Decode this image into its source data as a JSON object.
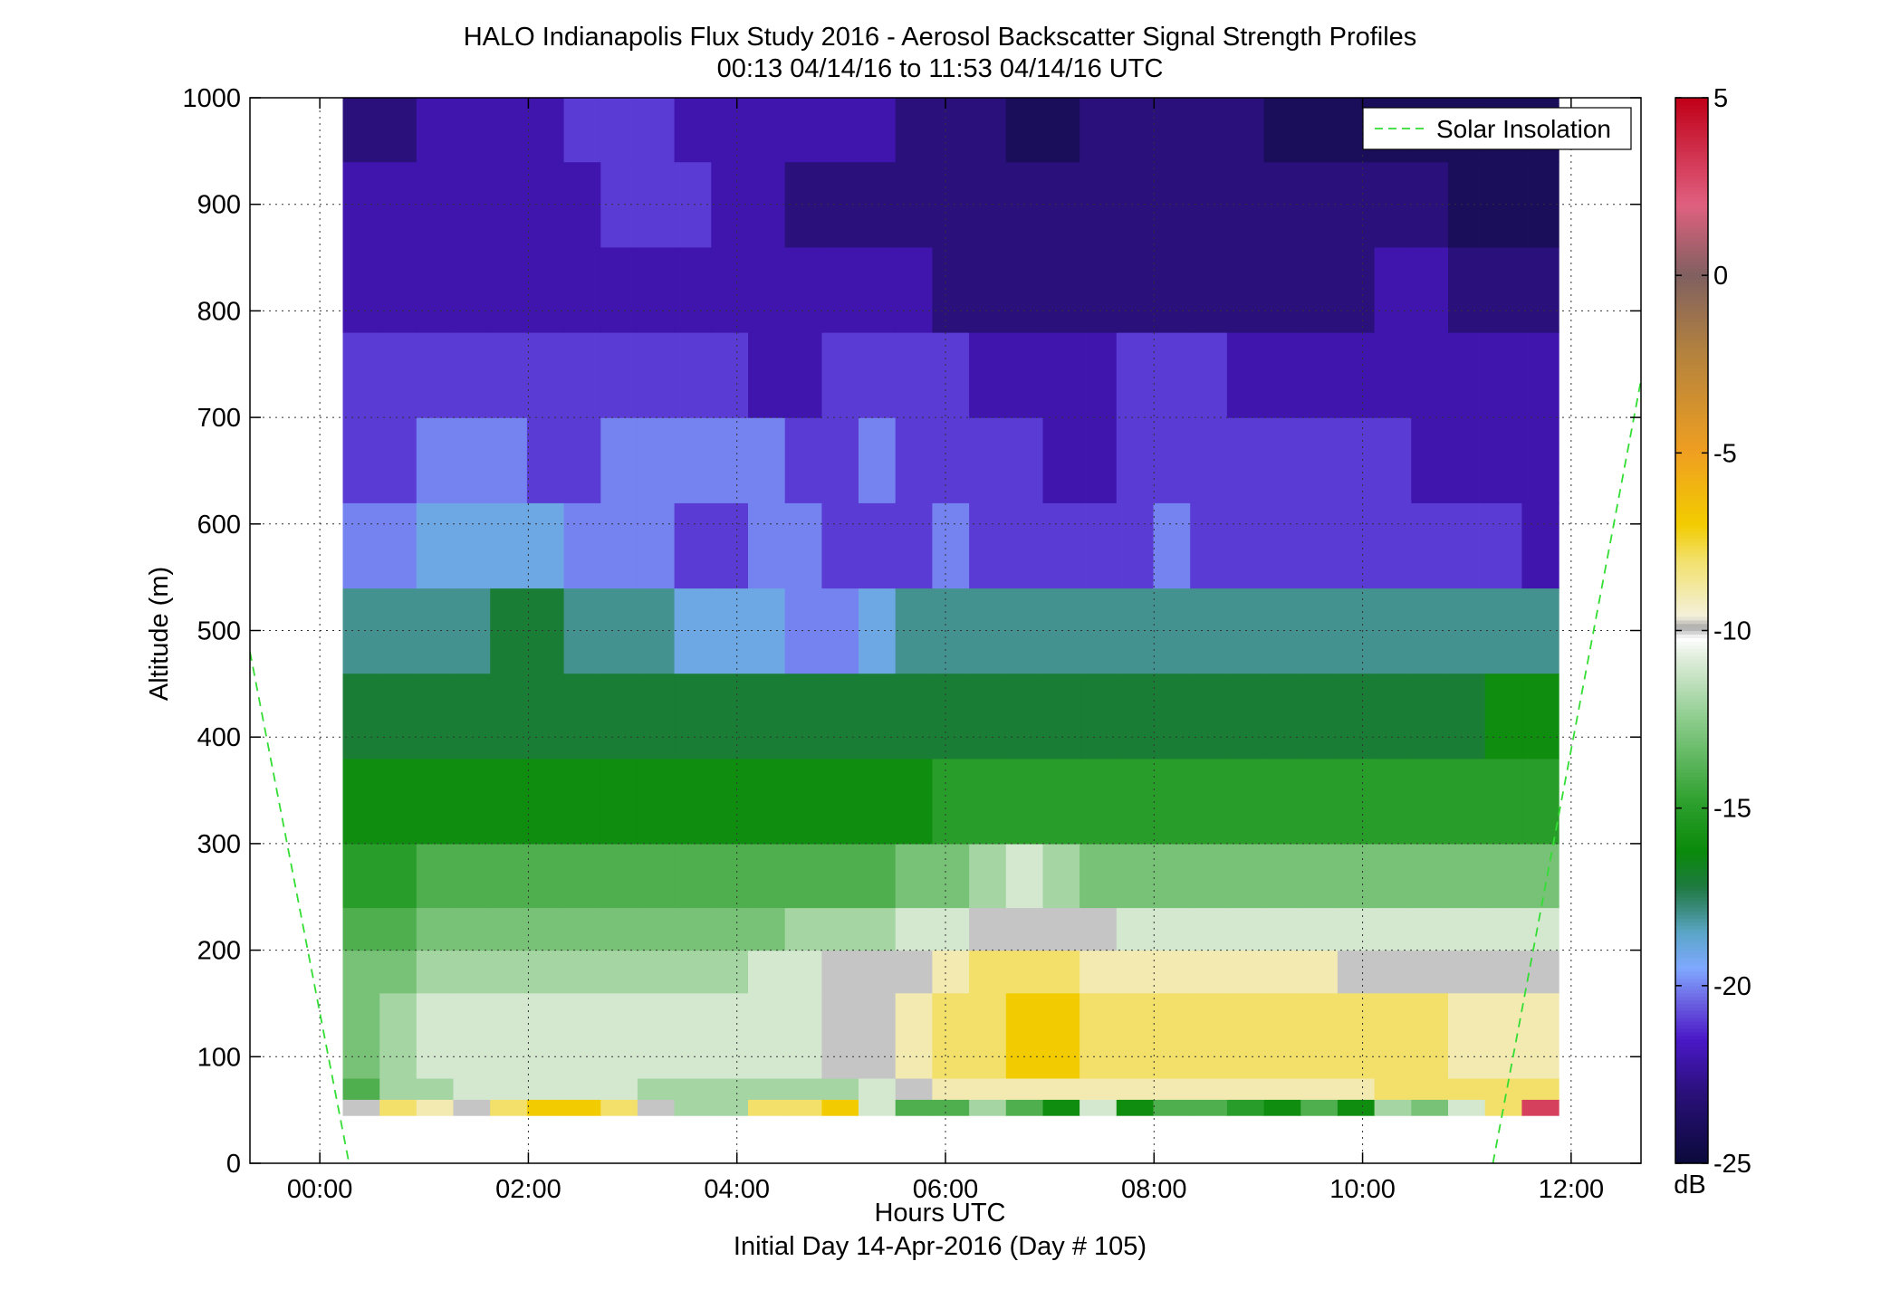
{
  "chart_data": {
    "type": "heatmap",
    "title": "HALO Indianapolis Flux Study 2016 - Aerosol Backscatter Signal Strength Profiles",
    "subtitle": "00:13 04/14/16 to 11:53 04/14/16  UTC",
    "xlabel": "Hours UTC",
    "xlabel2": "Initial Day 14-Apr-2016 (Day # 105)",
    "ylabel": "Altitude (m)",
    "xlim": [
      -0.67,
      12.67
    ],
    "ylim": [
      0,
      1000
    ],
    "x_ticks": [
      0,
      2,
      4,
      6,
      8,
      10,
      12
    ],
    "x_tick_labels": [
      "00:00",
      "02:00",
      "04:00",
      "06:00",
      "08:00",
      "10:00",
      "12:00"
    ],
    "y_ticks": [
      0,
      100,
      200,
      300,
      400,
      500,
      600,
      700,
      800,
      900,
      1000
    ],
    "y_tick_labels": [
      "0",
      "100",
      "200",
      "300",
      "400",
      "500",
      "600",
      "700",
      "800",
      "900",
      "1000"
    ],
    "grid": true,
    "x_range_hours": [
      0.22,
      11.88
    ],
    "altitude_range_m": [
      45,
      1000
    ],
    "colorbar": {
      "label": "dB",
      "range": [
        -25,
        5
      ],
      "ticks": [
        5,
        0,
        -5,
        -10,
        -15,
        -20,
        -25
      ],
      "tick_labels": [
        "5",
        "0",
        "-5",
        "-10",
        "-15",
        "-20",
        "-25"
      ]
    },
    "legend": {
      "position": "top-right",
      "entries": [
        "Solar Insolation"
      ]
    },
    "series": [
      {
        "name": "Solar Insolation",
        "type": "line",
        "style": "dashed",
        "color": "#33dd33",
        "segments": [
          {
            "x": [
              -0.67,
              0.28
            ],
            "y": [
              480,
              0
            ]
          },
          {
            "x": [
              11.25,
              12.67
            ],
            "y": [
              0,
              735
            ]
          }
        ]
      }
    ],
    "profile_bands": [
      {
        "alt_min": 45,
        "alt_max": 60,
        "values": [
          -10,
          -8,
          -9,
          -10,
          -8,
          -7,
          -7,
          -8,
          -10,
          -12,
          -12,
          -8,
          -8,
          -7,
          -11,
          -14,
          -14,
          -12,
          -14,
          -16,
          -11,
          -16,
          -14,
          -14,
          -15,
          -16,
          -14,
          -16,
          -12,
          -13,
          -11,
          -8,
          3
        ]
      },
      {
        "alt_min": 60,
        "alt_max": 80,
        "values": [
          -14,
          -12,
          -12,
          -11,
          -11,
          -11,
          -11,
          -11,
          -12,
          -12,
          -12,
          -12,
          -12,
          -12,
          -11,
          -10,
          -9,
          -9,
          -9,
          -9,
          -9,
          -9,
          -9,
          -9,
          -9,
          -9,
          -9,
          -9,
          -8,
          -8,
          -8,
          -8,
          -8
        ]
      },
      {
        "alt_min": 80,
        "alt_max": 160,
        "values": [
          -13,
          -12,
          -11,
          -11,
          -11,
          -11,
          -11,
          -11,
          -11,
          -11,
          -11,
          -11,
          -11,
          -10,
          -10,
          -9,
          -8,
          -8,
          -7,
          -7,
          -8,
          -8,
          -8,
          -8,
          -8,
          -8,
          -8,
          -8,
          -8,
          -8,
          -9,
          -9,
          -9
        ]
      },
      {
        "alt_min": 160,
        "alt_max": 200,
        "values": [
          -13,
          -13,
          -12,
          -12,
          -12,
          -12,
          -12,
          -12,
          -12,
          -12,
          -12,
          -11,
          -11,
          -10,
          -10,
          -10,
          -9,
          -8,
          -8,
          -8,
          -9,
          -9,
          -9,
          -9,
          -9,
          -9,
          -9,
          -10,
          -10,
          -10,
          -10,
          -10,
          -10
        ]
      },
      {
        "alt_min": 200,
        "alt_max": 240,
        "values": [
          -14,
          -14,
          -13,
          -13,
          -13,
          -13,
          -13,
          -13,
          -13,
          -13,
          -13,
          -13,
          -12,
          -12,
          -12,
          -11,
          -11,
          -10,
          -10,
          -10,
          -10,
          -11,
          -11,
          -11,
          -11,
          -11,
          -11,
          -11,
          -11,
          -11,
          -11,
          -11,
          -11
        ]
      },
      {
        "alt_min": 240,
        "alt_max": 300,
        "values": [
          -15,
          -15,
          -14,
          -14,
          -14,
          -14,
          -14,
          -14,
          -14,
          -14,
          -14,
          -14,
          -14,
          -14,
          -14,
          -13,
          -13,
          -12,
          -11,
          -12,
          -13,
          -13,
          -13,
          -13,
          -13,
          -13,
          -13,
          -13,
          -13,
          -13,
          -13,
          -13,
          -13
        ]
      },
      {
        "alt_min": 300,
        "alt_max": 380,
        "values": [
          -16,
          -16,
          -16,
          -16,
          -16,
          -16,
          -16,
          -16,
          -16,
          -16,
          -16,
          -16,
          -16,
          -16,
          -16,
          -16,
          -15,
          -15,
          -15,
          -15,
          -15,
          -15,
          -15,
          -15,
          -15,
          -15,
          -15,
          -15,
          -15,
          -15,
          -15,
          -15,
          -15
        ]
      },
      {
        "alt_min": 380,
        "alt_max": 460,
        "values": [
          -17,
          -17,
          -17,
          -17,
          -17,
          -17,
          -17,
          -17,
          -17,
          -17,
          -17,
          -17,
          -17,
          -17,
          -17,
          -17,
          -17,
          -17,
          -17,
          -17,
          -17,
          -17,
          -17,
          -17,
          -17,
          -17,
          -17,
          -17,
          -17,
          -17,
          -17,
          -16,
          -16
        ]
      },
      {
        "alt_min": 460,
        "alt_max": 540,
        "values": [
          -18,
          -18,
          -18,
          -18,
          -17,
          -17,
          -18,
          -18,
          -18,
          -19,
          -19,
          -19,
          -20,
          -20,
          -19,
          -18,
          -18,
          -18,
          -18,
          -18,
          -18,
          -18,
          -18,
          -18,
          -18,
          -18,
          -18,
          -18,
          -18,
          -18,
          -18,
          -18,
          -18
        ]
      },
      {
        "alt_min": 540,
        "alt_max": 620,
        "values": [
          -20,
          -20,
          -19,
          -19,
          -19,
          -19,
          -20,
          -20,
          -20,
          -21,
          -21,
          -20,
          -20,
          -21,
          -21,
          -21,
          -20,
          -21,
          -21,
          -21,
          -21,
          -21,
          -20,
          -21,
          -21,
          -21,
          -21,
          -21,
          -21,
          -21,
          -21,
          -21,
          -22
        ]
      },
      {
        "alt_min": 620,
        "alt_max": 700,
        "values": [
          -21,
          -21,
          -20,
          -20,
          -20,
          -21,
          -21,
          -20,
          -20,
          -20,
          -20,
          -20,
          -21,
          -21,
          -20,
          -21,
          -21,
          -21,
          -21,
          -22,
          -22,
          -21,
          -21,
          -21,
          -21,
          -21,
          -21,
          -21,
          -21,
          -22,
          -22,
          -22,
          -22
        ]
      },
      {
        "alt_min": 700,
        "alt_max": 780,
        "values": [
          -21,
          -21,
          -21,
          -21,
          -21,
          -21,
          -21,
          -21,
          -21,
          -21,
          -21,
          -22,
          -22,
          -21,
          -21,
          -21,
          -21,
          -22,
          -22,
          -22,
          -22,
          -21,
          -21,
          -21,
          -22,
          -22,
          -22,
          -22,
          -22,
          -22,
          -22,
          -22,
          -22
        ]
      },
      {
        "alt_min": 780,
        "alt_max": 860,
        "values": [
          -22,
          -22,
          -22,
          -22,
          -22,
          -22,
          -22,
          -22,
          -22,
          -22,
          -22,
          -22,
          -22,
          -22,
          -22,
          -22,
          -23,
          -23,
          -23,
          -23,
          -23,
          -23,
          -23,
          -23,
          -23,
          -23,
          -23,
          -23,
          -22,
          -22,
          -23,
          -23,
          -23
        ]
      },
      {
        "alt_min": 860,
        "alt_max": 940,
        "values": [
          -22,
          -22,
          -22,
          -22,
          -22,
          -22,
          -22,
          -21,
          -21,
          -21,
          -22,
          -22,
          -23,
          -23,
          -23,
          -23,
          -23,
          -23,
          -23,
          -23,
          -23,
          -23,
          -23,
          -23,
          -23,
          -23,
          -23,
          -23,
          -23,
          -23,
          -24,
          -24,
          -24
        ]
      },
      {
        "alt_min": 940,
        "alt_max": 1000,
        "values": [
          -23,
          -23,
          -22,
          -22,
          -22,
          -22,
          -21,
          -21,
          -21,
          -22,
          -22,
          -22,
          -22,
          -22,
          -22,
          -23,
          -23,
          -23,
          -24,
          -24,
          -23,
          -23,
          -23,
          -23,
          -23,
          -24,
          -24,
          -24,
          -24,
          -24,
          -24,
          -24,
          -24
        ]
      }
    ]
  }
}
